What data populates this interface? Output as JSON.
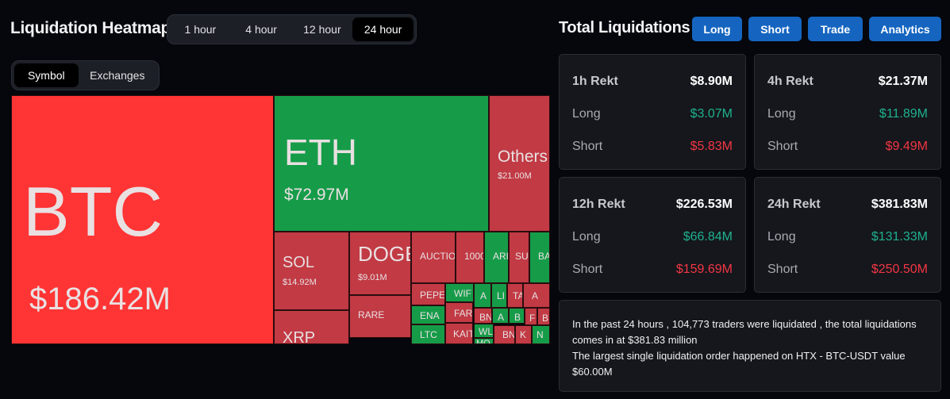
{
  "header": {
    "title": "Liquidation Heatmap",
    "time_options": [
      "1 hour",
      "4 hour",
      "12 hour",
      "24 hour"
    ],
    "selected_time": "24 hour",
    "type_options": [
      "Symbol",
      "Exchanges"
    ],
    "selected_type": "Symbol"
  },
  "heatmap": {
    "cells": [
      {
        "symbol": "BTC",
        "amount": "$186.42M",
        "color": "#ff3434"
      },
      {
        "symbol": "ETH",
        "amount": "$72.97M",
        "color": "#169c49"
      },
      {
        "symbol": "Others",
        "amount": "$21.00M",
        "color": "#c13a44"
      },
      {
        "symbol": "SOL",
        "amount": "$14.92M",
        "color": "#c13a44"
      },
      {
        "symbol": "DOGE",
        "amount": "$9.01M",
        "color": "#c13a44"
      },
      {
        "symbol": "XRP",
        "amount": "",
        "color": "#c13a44"
      },
      {
        "symbol": "RARE",
        "amount": "",
        "color": "#c13a44"
      },
      {
        "symbol": "AUCTIO",
        "amount": "",
        "color": "#c13a44"
      },
      {
        "symbol": "1000",
        "amount": "",
        "color": "#c13a44"
      },
      {
        "symbol": "ARI",
        "amount": "",
        "color": "#169c49"
      },
      {
        "symbol": "SU",
        "amount": "",
        "color": "#c13a44"
      },
      {
        "symbol": "BA",
        "amount": "",
        "color": "#169c49"
      },
      {
        "symbol": "PEPE",
        "amount": "",
        "color": "#c13a44"
      },
      {
        "symbol": "WIF",
        "amount": "",
        "color": "#169c49"
      },
      {
        "symbol": "A",
        "amount": "",
        "color": "#169c49"
      },
      {
        "symbol": "LI",
        "amount": "",
        "color": "#169c49"
      },
      {
        "symbol": "TA",
        "amount": "",
        "color": "#c13a44"
      },
      {
        "symbol": "A",
        "amount": "",
        "color": "#c13a44"
      },
      {
        "symbol": "ENA",
        "amount": "",
        "color": "#169c49"
      },
      {
        "symbol": "FART",
        "amount": "",
        "color": "#c13a44"
      },
      {
        "symbol": "BN",
        "amount": "",
        "color": "#c13a44"
      },
      {
        "symbol": "A",
        "amount": "",
        "color": "#169c49"
      },
      {
        "symbol": "B",
        "amount": "",
        "color": "#169c49"
      },
      {
        "symbol": "F",
        "amount": "",
        "color": "#c13a44"
      },
      {
        "symbol": "B",
        "amount": "",
        "color": "#c13a44"
      },
      {
        "symbol": "LTC",
        "amount": "",
        "color": "#169c49"
      },
      {
        "symbol": "KAIT",
        "amount": "",
        "color": "#c13a44"
      },
      {
        "symbol": "WL",
        "amount": "",
        "color": "#169c49"
      },
      {
        "symbol": "BN",
        "amount": "",
        "color": "#c13a44"
      },
      {
        "symbol": "K",
        "amount": "",
        "color": "#c13a44"
      },
      {
        "symbol": "N",
        "amount": "",
        "color": "#169c49"
      },
      {
        "symbol": "MO",
        "amount": "",
        "color": "#169c49"
      }
    ]
  },
  "totals": {
    "title": "Total Liquidations",
    "buttons": [
      "Long",
      "Short",
      "Trade",
      "Analytics"
    ],
    "cards": [
      {
        "label": "1h Rekt",
        "total": "$8.90M",
        "long_label": "Long",
        "long": "$3.07M",
        "short_label": "Short",
        "short": "$5.83M"
      },
      {
        "label": "4h Rekt",
        "total": "$21.37M",
        "long_label": "Long",
        "long": "$11.89M",
        "short_label": "Short",
        "short": "$9.49M"
      },
      {
        "label": "12h Rekt",
        "total": "$226.53M",
        "long_label": "Long",
        "long": "$66.84M",
        "short_label": "Short",
        "short": "$159.69M"
      },
      {
        "label": "24h Rekt",
        "total": "$381.83M",
        "long_label": "Long",
        "long": "$131.33M",
        "short_label": "Short",
        "short": "$250.50M"
      }
    ],
    "summary": [
      "In the past 24 hours , 104,773 traders were liquidated , the total liquidations comes in at $381.83 million",
      "The largest single liquidation order happened on HTX - BTC-USDT value $60.00M"
    ]
  },
  "colors": {
    "long": "#1fb18e",
    "short": "#f23645",
    "button": "#1565c0"
  }
}
